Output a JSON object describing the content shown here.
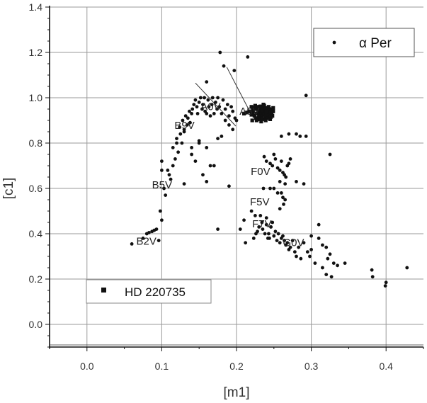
{
  "chart_data": {
    "type": "scatter",
    "xlabel": "[m1]",
    "ylabel": "[c1]",
    "xlim": [
      -0.05,
      0.45
    ],
    "ylim": [
      -0.1,
      1.4
    ],
    "x_ticks": [
      "0.0",
      "0.1",
      "0.2",
      "0.3",
      "0.4"
    ],
    "x_tick_values": [
      0.0,
      0.1,
      0.2,
      0.3,
      0.4
    ],
    "y_ticks": [
      "0.0",
      "0.2",
      "0.4",
      "0.6",
      "0.8",
      "1.0",
      "1.2",
      "1.4"
    ],
    "y_tick_values": [
      0.0,
      0.2,
      0.4,
      0.6,
      0.8,
      1.0,
      1.2,
      1.4
    ],
    "grid": true,
    "spectral_labels": [
      {
        "text": "A0V",
        "x": 0.152,
        "y": 0.945
      },
      {
        "text": "A3V",
        "x": 0.204,
        "y": 0.925
      },
      {
        "text": "B9V",
        "x": 0.117,
        "y": 0.863
      },
      {
        "text": "F0V",
        "x": 0.219,
        "y": 0.66
      },
      {
        "text": "B5V",
        "x": 0.087,
        "y": 0.6
      },
      {
        "text": "F5V",
        "x": 0.218,
        "y": 0.525
      },
      {
        "text": "F7V",
        "x": 0.221,
        "y": 0.428
      },
      {
        "text": "B2V",
        "x": 0.066,
        "y": 0.352
      },
      {
        "text": "G0V",
        "x": 0.262,
        "y": 0.345
      }
    ],
    "reddening_lines": [
      {
        "x1": 0.145,
        "y1": 1.065,
        "x2": 0.199,
        "y2": 0.875
      },
      {
        "x1": 0.187,
        "y1": 1.135,
        "x2": 0.22,
        "y2": 0.925
      }
    ],
    "series": [
      {
        "name": "α Per",
        "marker": "dot",
        "x": [
          0.06,
          0.075,
          0.08,
          0.083,
          0.087,
          0.09,
          0.093,
          0.096,
          0.098,
          0.1,
          0.1,
          0.1,
          0.103,
          0.105,
          0.108,
          0.11,
          0.112,
          0.115,
          0.115,
          0.118,
          0.12,
          0.122,
          0.124,
          0.125,
          0.127,
          0.128,
          0.13,
          0.132,
          0.134,
          0.135,
          0.137,
          0.138,
          0.14,
          0.141,
          0.143,
          0.145,
          0.147,
          0.148,
          0.15,
          0.152,
          0.154,
          0.155,
          0.157,
          0.158,
          0.16,
          0.162,
          0.163,
          0.165,
          0.167,
          0.168,
          0.17,
          0.172,
          0.174,
          0.175,
          0.177,
          0.18,
          0.182,
          0.185,
          0.188,
          0.19,
          0.193,
          0.195,
          0.198,
          0.13,
          0.14,
          0.15,
          0.16,
          0.17,
          0.175,
          0.185,
          0.19,
          0.195,
          0.2,
          0.12,
          0.13,
          0.145,
          0.155,
          0.165,
          0.14,
          0.15,
          0.16,
          0.18,
          0.178,
          0.183,
          0.215,
          0.197,
          0.16,
          0.19,
          0.175,
          0.237,
          0.24,
          0.245,
          0.248,
          0.25,
          0.252,
          0.255,
          0.258,
          0.26,
          0.262,
          0.264,
          0.266,
          0.268,
          0.27,
          0.272,
          0.245,
          0.25,
          0.255,
          0.26,
          0.265,
          0.28,
          0.263,
          0.258,
          0.262,
          0.235,
          0.24,
          0.243,
          0.244,
          0.246,
          0.248,
          0.25,
          0.252,
          0.254,
          0.256,
          0.258,
          0.26,
          0.262,
          0.264,
          0.266,
          0.268,
          0.27,
          0.272,
          0.275,
          0.278,
          0.28,
          0.283,
          0.286,
          0.29,
          0.295,
          0.298,
          0.3,
          0.305,
          0.31,
          0.315,
          0.32,
          0.322,
          0.325,
          0.33,
          0.335,
          0.345,
          0.225,
          0.22,
          0.21,
          0.205,
          0.212,
          0.28,
          0.27,
          0.26,
          0.265,
          0.29,
          0.293,
          0.325,
          0.32,
          0.382,
          0.381,
          0.399,
          0.4,
          0.428,
          0.31,
          0.3,
          0.285,
          0.293,
          0.315,
          0.327,
          0.258,
          0.236,
          0.232,
          0.238,
          0.242,
          0.246,
          0.228,
          0.23,
          0.234,
          0.24,
          0.223,
          0.226
        ],
        "y": [
          0.355,
          0.38,
          0.4,
          0.405,
          0.41,
          0.415,
          0.42,
          0.37,
          0.5,
          0.46,
          0.68,
          0.72,
          0.6,
          0.57,
          0.68,
          0.66,
          0.64,
          0.78,
          0.7,
          0.73,
          0.82,
          0.76,
          0.87,
          0.84,
          0.8,
          0.9,
          0.85,
          0.92,
          0.88,
          0.91,
          0.94,
          0.89,
          0.93,
          0.95,
          0.97,
          0.99,
          0.96,
          0.93,
          0.98,
          1.0,
          0.95,
          0.97,
          1.0,
          0.94,
          0.93,
          0.99,
          0.96,
          0.92,
          0.97,
          1.0,
          0.93,
          0.98,
          0.95,
          1.0,
          0.96,
          0.93,
          0.99,
          0.95,
          0.97,
          0.92,
          0.96,
          0.94,
          0.91,
          0.62,
          0.75,
          0.8,
          0.78,
          0.7,
          0.82,
          0.9,
          0.88,
          0.86,
          0.9,
          0.8,
          0.86,
          0.72,
          0.66,
          0.7,
          0.78,
          0.81,
          0.63,
          0.83,
          1.2,
          1.14,
          1.18,
          1.12,
          1.07,
          0.61,
          0.42,
          0.74,
          0.72,
          0.71,
          0.7,
          0.75,
          0.73,
          0.69,
          0.68,
          0.72,
          0.67,
          0.66,
          0.65,
          0.7,
          0.71,
          0.73,
          0.6,
          0.6,
          0.58,
          0.58,
          0.55,
          0.63,
          0.53,
          0.51,
          0.56,
          0.42,
          0.44,
          0.4,
          0.38,
          0.43,
          0.45,
          0.39,
          0.41,
          0.37,
          0.4,
          0.36,
          0.38,
          0.39,
          0.37,
          0.35,
          0.36,
          0.33,
          0.34,
          0.37,
          0.32,
          0.3,
          0.34,
          0.29,
          0.36,
          0.32,
          0.3,
          0.33,
          0.27,
          0.38,
          0.35,
          0.34,
          0.29,
          0.31,
          0.27,
          0.26,
          0.27,
          0.48,
          0.5,
          0.46,
          0.42,
          0.36,
          0.84,
          0.84,
          0.83,
          0.62,
          0.62,
          1.01,
          0.75,
          0.22,
          0.21,
          0.24,
          0.17,
          0.185,
          0.25,
          0.44,
          0.39,
          0.83,
          0.83,
          0.25,
          0.21,
          0.63,
          0.6,
          0.48,
          0.4,
          0.38,
          0.43,
          0.41,
          0.43,
          0.45,
          0.47,
          0.38,
          0.4
        ]
      },
      {
        "name": "HD 220735",
        "marker": "square",
        "x": [
          0.21,
          0.214,
          0.217,
          0.22,
          0.222,
          0.224,
          0.226,
          0.227,
          0.229,
          0.23,
          0.231,
          0.232,
          0.233,
          0.234,
          0.235,
          0.236,
          0.237,
          0.238,
          0.239,
          0.24,
          0.241,
          0.242,
          0.243,
          0.244,
          0.245,
          0.246,
          0.247,
          0.248,
          0.249,
          0.22,
          0.224,
          0.228,
          0.232,
          0.236,
          0.24,
          0.244,
          0.248,
          0.226,
          0.23,
          0.234,
          0.238,
          0.242,
          0.246,
          0.222,
          0.228,
          0.234,
          0.24,
          0.246,
          0.225,
          0.231,
          0.237,
          0.243,
          0.249,
          0.221,
          0.227,
          0.233,
          0.239,
          0.245,
          0.236
        ],
        "y": [
          0.93,
          0.935,
          0.94,
          0.925,
          0.945,
          0.92,
          0.95,
          0.93,
          0.94,
          0.915,
          0.945,
          0.93,
          0.955,
          0.92,
          0.94,
          0.935,
          0.925,
          0.945,
          0.915,
          0.93,
          0.95,
          0.92,
          0.94,
          0.935,
          0.925,
          0.945,
          0.93,
          0.92,
          0.94,
          0.96,
          0.955,
          0.96,
          0.962,
          0.958,
          0.955,
          0.95,
          0.948,
          0.91,
          0.905,
          0.91,
          0.905,
          0.91,
          0.915,
          0.935,
          0.93,
          0.945,
          0.94,
          0.935,
          0.965,
          0.96,
          0.965,
          0.96,
          0.955,
          0.9,
          0.9,
          0.895,
          0.9,
          0.905,
          0.97
        ]
      }
    ]
  },
  "legend": {
    "entry1_label": "α Per",
    "entry2_label": "HD 220735"
  }
}
